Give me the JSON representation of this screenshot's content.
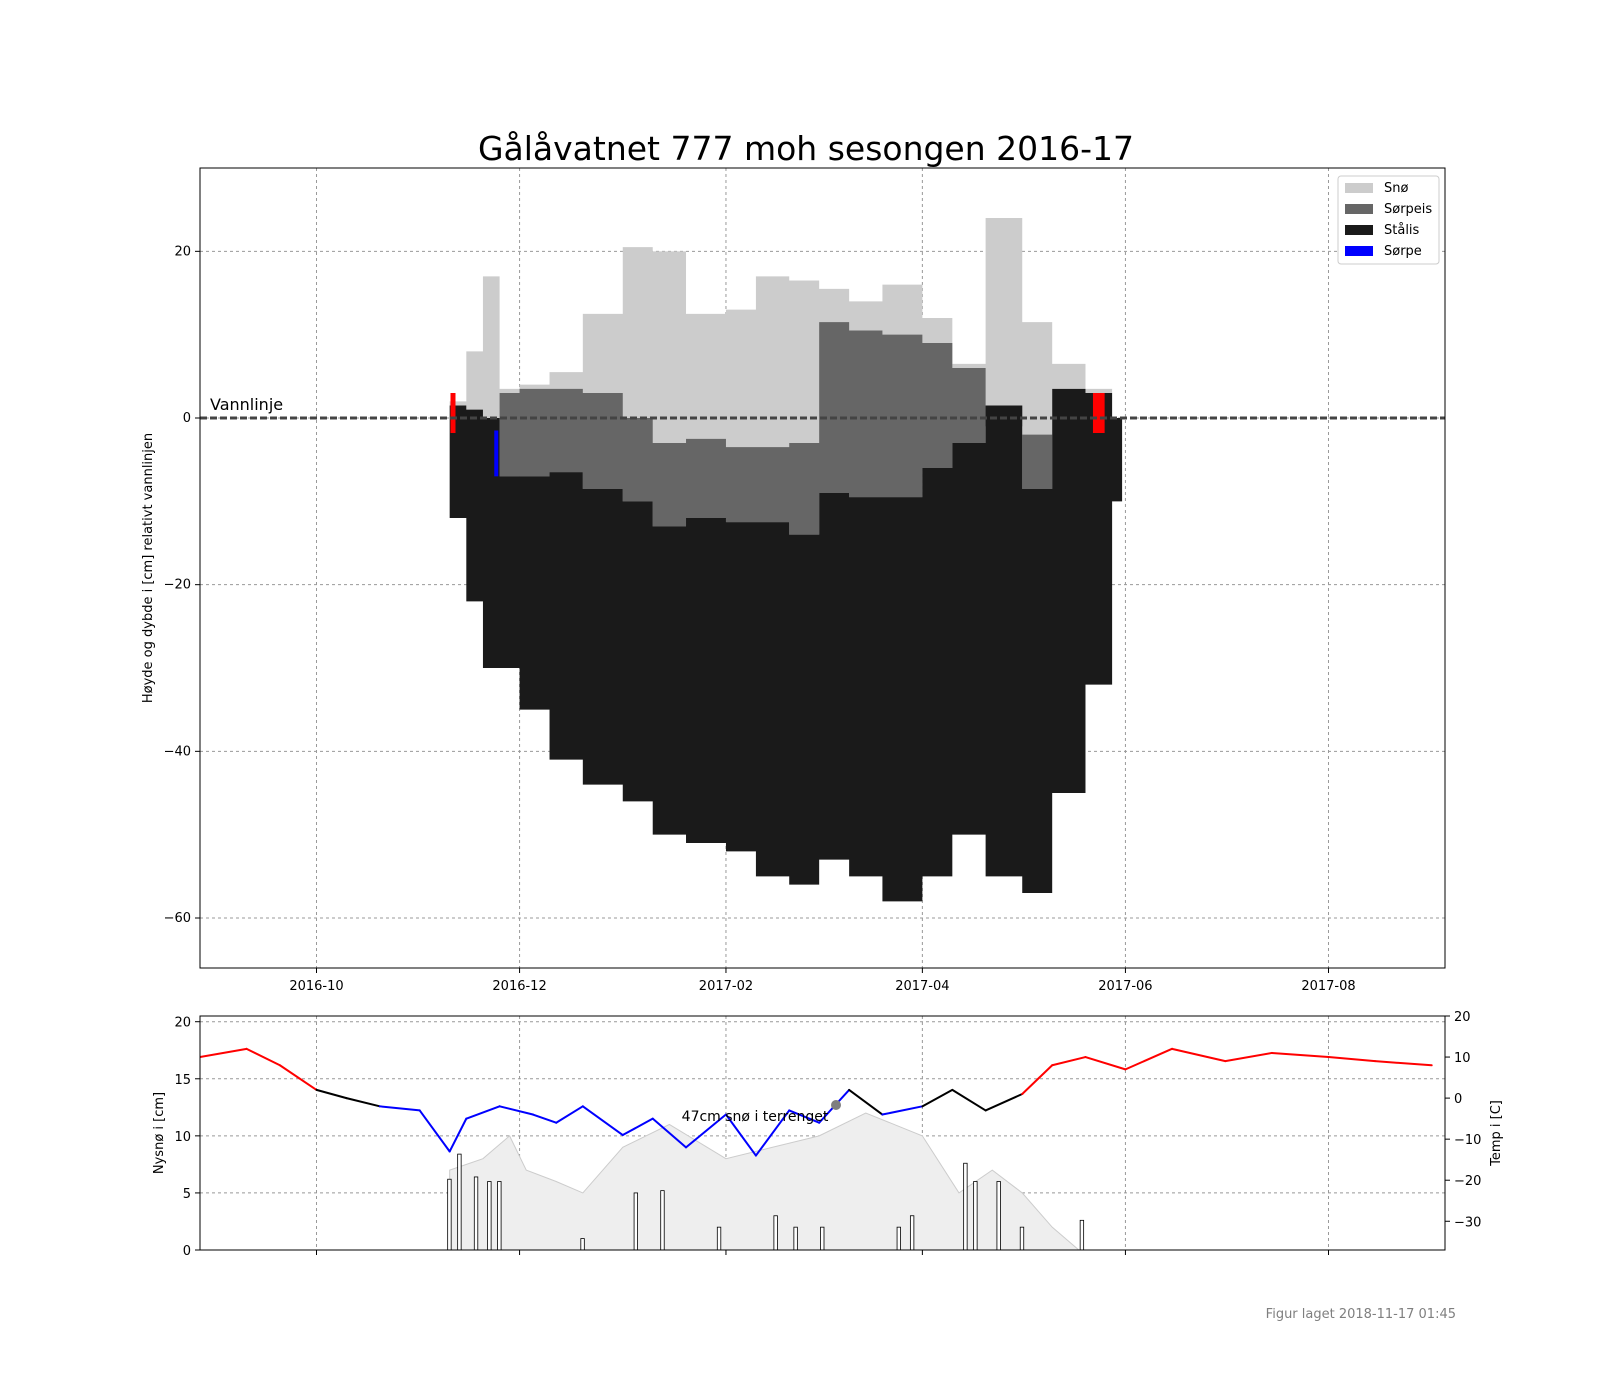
{
  "figure": {
    "title": "Gålåvatnet 777 moh sesongen 2016-17",
    "footer": "Figur laget 2018-11-17 01:45"
  },
  "colors": {
    "sno": "#cccccc",
    "sorpeis": "#666666",
    "stalis": "#1a1a1a",
    "sorpe": "#0000ff",
    "event_marker": "#ff0000",
    "temp_warm": "#ff0000",
    "temp_cold": "#0000ff",
    "temp_mid": "#000000",
    "terrain_snow": "#eeeeee"
  },
  "chart_data": [
    {
      "type": "area",
      "ylabel": "Høyde og dybde i [cm] relativt vannlinjen",
      "ylim": [
        -66,
        30
      ],
      "xlim": [
        "2016-08-27",
        "2017-09-05"
      ],
      "xticks": [
        "2016-10",
        "2016-12",
        "2017-02",
        "2017-04",
        "2017-06",
        "2017-08"
      ],
      "yticks": [
        20,
        0,
        -20,
        -40,
        -60
      ],
      "grid": true,
      "legend_position": "top-right",
      "legend": [
        "Snø",
        "Sørpeis",
        "Stålis",
        "Sørpe"
      ],
      "annotation": "Vannlinje",
      "x": [
        "2016-11-10",
        "2016-11-15",
        "2016-11-20",
        "2016-11-25",
        "2016-12-01",
        "2016-12-10",
        "2016-12-20",
        "2017-01-01",
        "2017-01-10",
        "2017-01-20",
        "2017-02-01",
        "2017-02-10",
        "2017-02-20",
        "2017-03-01",
        "2017-03-10",
        "2017-03-20",
        "2017-04-01",
        "2017-04-10",
        "2017-04-20",
        "2017-05-01",
        "2017-05-10",
        "2017-05-20",
        "2017-05-28"
      ],
      "series": [
        {
          "name": "Stålis",
          "top": [
            1.5,
            1.0,
            0.0,
            -7.0,
            -7.0,
            -6.5,
            -8.5,
            -10.0,
            -13.0,
            -12.0,
            -12.5,
            -12.5,
            -14.0,
            -9.0,
            -9.5,
            -9.5,
            -6.0,
            -3.0,
            1.5,
            -8.5,
            3.5,
            3.0,
            0.0
          ],
          "bottom": [
            -12,
            -22,
            -30,
            -30,
            -35,
            -41,
            -44,
            -46,
            -50,
            -51,
            -52,
            -55,
            -56,
            -53,
            -55,
            -58,
            -55,
            -50,
            -55,
            -57,
            -45,
            -32,
            -10
          ]
        },
        {
          "name": "Sørpeis",
          "top": [
            1.5,
            1.0,
            0.0,
            3.0,
            3.5,
            3.5,
            3.0,
            0.0,
            -3.0,
            -2.5,
            -3.5,
            -3.5,
            -3.0,
            11.5,
            10.5,
            10.0,
            9.0,
            6.0,
            -1.0,
            -2.0,
            3.5,
            3.0,
            0.0
          ]
        },
        {
          "name": "Snø",
          "top": [
            2.0,
            8.0,
            17.0,
            3.5,
            4.0,
            5.5,
            12.5,
            20.5,
            20.0,
            12.5,
            13.0,
            17.0,
            16.5,
            15.5,
            14.0,
            16.0,
            12.0,
            6.5,
            24.0,
            11.5,
            6.5,
            3.5,
            0.0
          ]
        },
        {
          "name": "Sørpe",
          "top": [
            -1.5
          ],
          "bottom": [
            -7.0
          ],
          "x": [
            "2016-11-24"
          ]
        }
      ],
      "events": [
        "2016-11-11",
        "2017-05-23",
        "2017-05-24",
        "2017-05-25"
      ]
    },
    {
      "type": "bar",
      "ylabel": "Nysnø i [cm]",
      "ylabel_right": "Temp i [C]",
      "ylim": [
        0,
        20.5
      ],
      "ylim_right": [
        -37,
        20
      ],
      "yticks": [
        20,
        15,
        10,
        5,
        0
      ],
      "yticks_right": [
        20,
        10,
        0,
        -10,
        -20,
        -30
      ],
      "grid": true,
      "annotation": "47cm snø i terrenget",
      "snow_on_ground": {
        "x": [
          "2016-11-10",
          "2016-11-20",
          "2016-11-28",
          "2016-12-03",
          "2016-12-12",
          "2016-12-20",
          "2017-01-01",
          "2017-01-15",
          "2017-02-01",
          "2017-02-15",
          "2017-03-01",
          "2017-03-15",
          "2017-04-01",
          "2017-04-12",
          "2017-04-22",
          "2017-05-01",
          "2017-05-10",
          "2017-05-18"
        ],
        "y": [
          7,
          8,
          10,
          7,
          6,
          5,
          9,
          11,
          8,
          9,
          10,
          12,
          10,
          5,
          7,
          5,
          2,
          0
        ]
      },
      "newsnow": {
        "x": [
          "2016-11-10",
          "2016-11-13",
          "2016-11-18",
          "2016-11-22",
          "2016-11-25",
          "2016-12-20",
          "2017-01-05",
          "2017-01-13",
          "2017-01-30",
          "2017-02-16",
          "2017-02-22",
          "2017-03-02",
          "2017-03-25",
          "2017-03-29",
          "2017-04-14",
          "2017-04-17",
          "2017-04-24",
          "2017-05-01",
          "2017-05-19"
        ],
        "values": [
          6.2,
          8.4,
          6.4,
          6.0,
          6.0,
          1.0,
          5.0,
          5.2,
          2.0,
          3.0,
          2.0,
          2.0,
          2.0,
          3.0,
          7.6,
          6.0,
          6.0,
          2.0,
          2.6
        ]
      },
      "temperature": {
        "x": [
          "2016-08-27",
          "2016-09-10",
          "2016-09-20",
          "2016-10-01",
          "2016-10-10",
          "2016-10-20",
          "2016-11-01",
          "2016-11-10",
          "2016-11-15",
          "2016-11-25",
          "2016-12-05",
          "2016-12-12",
          "2016-12-20",
          "2017-01-01",
          "2017-01-10",
          "2017-01-20",
          "2017-02-01",
          "2017-02-10",
          "2017-02-20",
          "2017-03-01",
          "2017-03-10",
          "2017-03-20",
          "2017-04-01",
          "2017-04-10",
          "2017-04-20",
          "2017-05-01",
          "2017-05-10",
          "2017-05-20",
          "2017-06-01",
          "2017-06-15",
          "2017-07-01",
          "2017-07-15",
          "2017-08-01",
          "2017-08-15",
          "2017-09-01"
        ],
        "values": [
          10,
          12,
          8,
          2,
          0,
          -2,
          -3,
          -13,
          -5,
          -2,
          -4,
          -6,
          -2,
          -9,
          -5,
          -12,
          -4,
          -14,
          -3,
          -6,
          2,
          -4,
          -2,
          2,
          -3,
          1,
          8,
          10,
          7,
          12,
          9,
          11,
          10,
          9,
          8
        ]
      }
    }
  ]
}
